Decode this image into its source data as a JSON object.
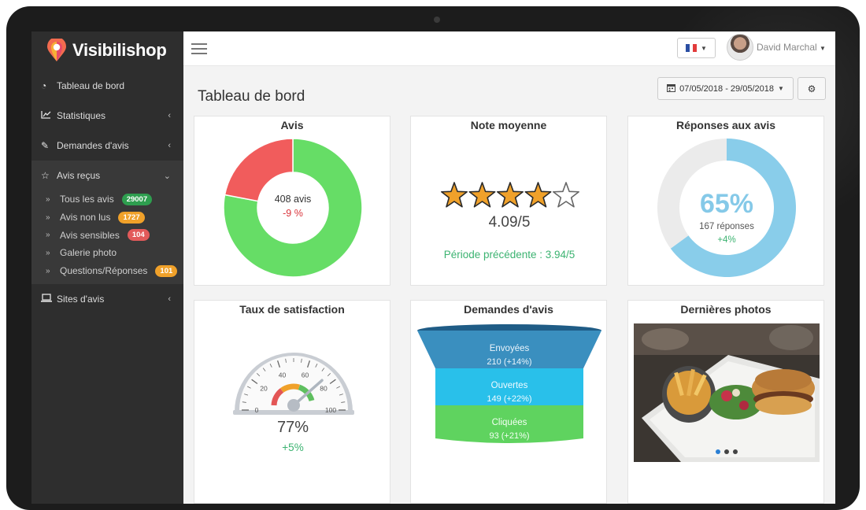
{
  "app": {
    "logo_text": "Visibilishop"
  },
  "sidebar": {
    "items": [
      {
        "label": "Tableau de bord",
        "icon": "dashboard-icon"
      },
      {
        "label": "Statistiques",
        "icon": "line-chart-icon"
      },
      {
        "label": "Demandes d'avis",
        "icon": "edit-icon"
      },
      {
        "label": "Avis reçus",
        "icon": "star-outline-icon"
      },
      {
        "label": "Sites d'avis",
        "icon": "laptop-icon"
      }
    ],
    "sub_items": [
      {
        "label": "Tous les avis",
        "badge": "29007",
        "badge_color": "#2e9e4f"
      },
      {
        "label": "Avis non lus",
        "badge": "1727",
        "badge_color": "#f0a12a"
      },
      {
        "label": "Avis sensibles",
        "badge": "104",
        "badge_color": "#e25a5a"
      },
      {
        "label": "Galerie photo",
        "badge": "",
        "badge_color": ""
      },
      {
        "label": "Questions/Réponses",
        "badge": "101",
        "badge_color": "#f0a12a"
      }
    ]
  },
  "topbar": {
    "user_name": "David Marchal"
  },
  "page": {
    "title": "Tableau de bord",
    "date_range": "07/05/2018 - 29/05/2018"
  },
  "cards": {
    "avis": {
      "title": "Avis",
      "center_label": "408 avis",
      "delta": "-9 %",
      "positive_share": 0.78,
      "colors": {
        "positive": "#66dd66",
        "negative": "#f15c5c"
      }
    },
    "note": {
      "title": "Note moyenne",
      "rating": 4.09,
      "max": 5,
      "value_text": "4.09/5",
      "previous_text": "Période précédente : 3.94/5"
    },
    "reponses": {
      "title": "Réponses aux avis",
      "percent": 65,
      "percent_text": "65%",
      "count_text": "167 réponses",
      "delta": "+4%"
    },
    "satisfaction": {
      "title": "Taux de satisfaction",
      "value": 77,
      "value_text": "77%",
      "delta": "+5%",
      "ticks": [
        "0",
        "20",
        "40",
        "60",
        "80",
        "100"
      ]
    },
    "demandes": {
      "title": "Demandes d'avis",
      "stages": [
        {
          "label": "Envoyées",
          "sub": "210 (+14%)",
          "color": "#3a8fbf"
        },
        {
          "label": "Ouvertes",
          "sub": "149 (+22%)",
          "color": "#29c0ea"
        },
        {
          "label": "Cliquées",
          "sub": "93 (+21%)",
          "color": "#5fd35f"
        }
      ]
    },
    "photos": {
      "title": "Dernières photos"
    }
  }
}
